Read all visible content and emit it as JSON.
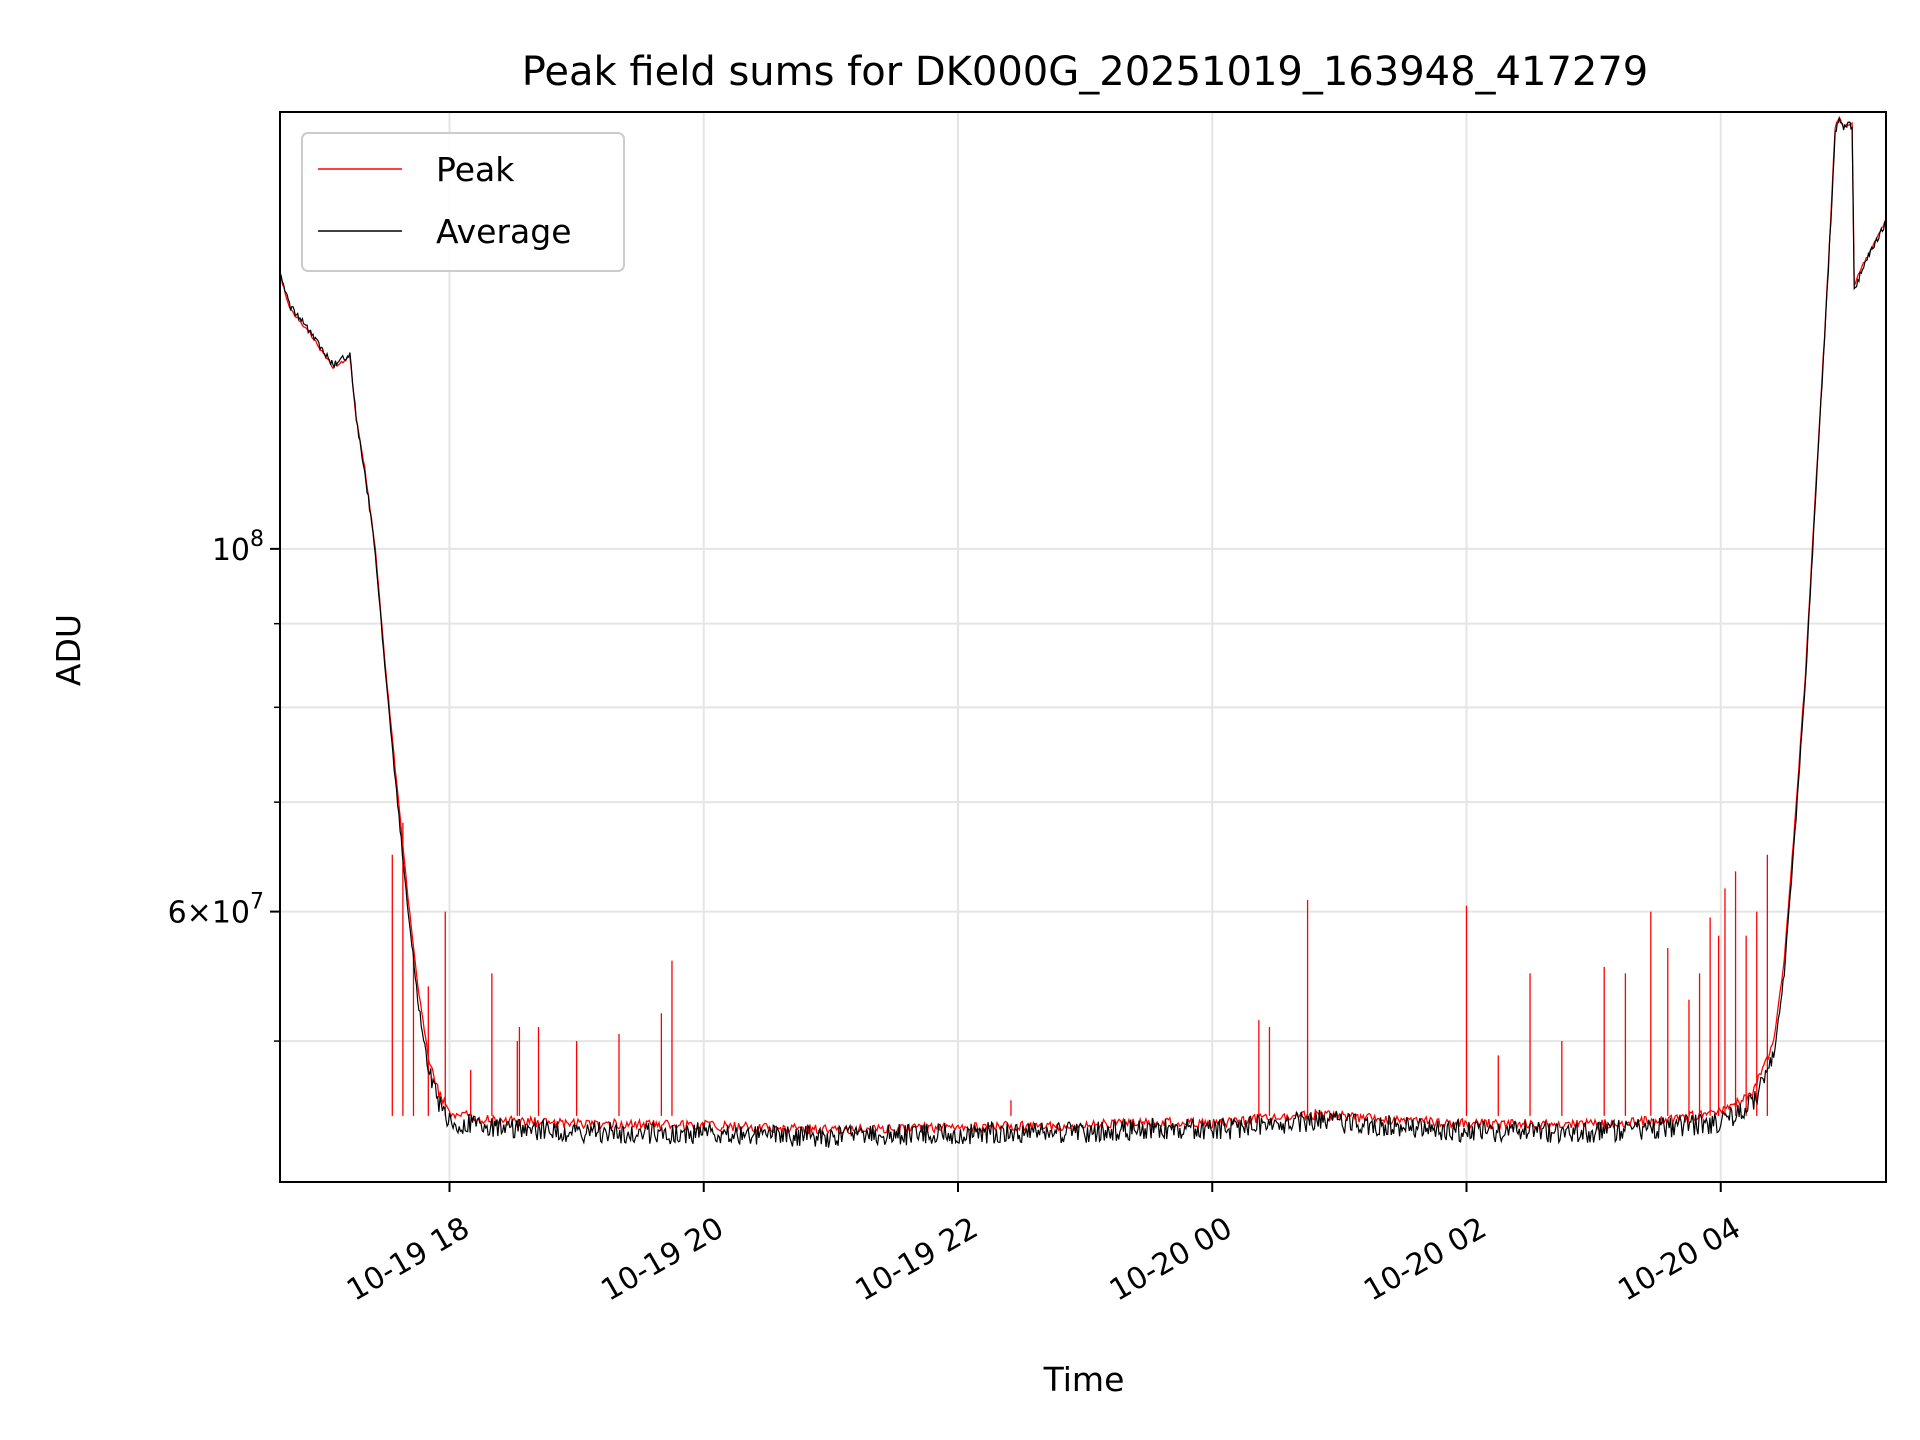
{
  "chart_data": {
    "type": "line",
    "title": "Peak field sums for DK000G_20251019_163948_417279",
    "xlabel": "Time",
    "ylabel": "ADU",
    "x_axis": {
      "type": "time",
      "range": [
        "2025-10-19 16:40",
        "2025-10-20 05:18"
      ],
      "ticks": [
        {
          "value": "2025-10-19 18:00",
          "label": "10-19 18"
        },
        {
          "value": "2025-10-19 20:00",
          "label": "10-19 20"
        },
        {
          "value": "2025-10-19 22:00",
          "label": "10-19 22"
        },
        {
          "value": "2025-10-20 00:00",
          "label": "10-20 00"
        },
        {
          "value": "2025-10-20 02:00",
          "label": "10-20 02"
        },
        {
          "value": "2025-10-20 04:00",
          "label": "10-20 04"
        }
      ]
    },
    "y_axis": {
      "scale": "log",
      "range": [
        41000000,
        185000000
      ],
      "major_ticks": [
        {
          "value": 100000000,
          "base": "10",
          "exp": "8"
        },
        {
          "value": 60000000,
          "mantissa": "6",
          "base": "10",
          "exp": "7"
        }
      ],
      "minor_ticks": [
        50000000,
        70000000,
        80000000,
        90000000
      ]
    },
    "grid": true,
    "legend_position": "top-left",
    "series": [
      {
        "name": "Peak",
        "color": "#ff0000",
        "points": [
          [
            "2025-10-19 16:40",
            147000000
          ],
          [
            "2025-10-19 16:45",
            140000000
          ],
          [
            "2025-10-19 16:55",
            135000000
          ],
          [
            "2025-10-19 17:05",
            129000000
          ],
          [
            "2025-10-19 17:13",
            131000000
          ],
          [
            "2025-10-19 17:16",
            120000000
          ],
          [
            "2025-10-19 17:20",
            112000000
          ],
          [
            "2025-10-19 17:25",
            100000000
          ],
          [
            "2025-10-19 17:30",
            84000000
          ],
          [
            "2025-10-19 17:35",
            72000000
          ],
          [
            "2025-10-19 17:40",
            62000000
          ],
          [
            "2025-10-19 17:45",
            54000000
          ],
          [
            "2025-10-19 17:50",
            49000000
          ],
          [
            "2025-10-19 17:55",
            46500000
          ],
          [
            "2025-10-19 18:00",
            45200000
          ],
          [
            "2025-10-19 18:20",
            44700000
          ],
          [
            "2025-10-19 19:00",
            44500000
          ],
          [
            "2025-10-19 20:00",
            44400000
          ],
          [
            "2025-10-19 21:00",
            44100000
          ],
          [
            "2025-10-19 22:00",
            44300000
          ],
          [
            "2025-10-19 23:00",
            44400000
          ],
          [
            "2025-10-19 23:30",
            44600000
          ],
          [
            "2025-10-20 00:00",
            44500000
          ],
          [
            "2025-10-20 00:30",
            44900000
          ],
          [
            "2025-10-20 00:50",
            45100000
          ],
          [
            "2025-10-20 01:20",
            44800000
          ],
          [
            "2025-10-20 02:00",
            44500000
          ],
          [
            "2025-10-20 03:00",
            44500000
          ],
          [
            "2025-10-20 03:30",
            44700000
          ],
          [
            "2025-10-20 04:00",
            45200000
          ],
          [
            "2025-10-20 04:15",
            46500000
          ],
          [
            "2025-10-20 04:25",
            50000000
          ],
          [
            "2025-10-20 04:30",
            56000000
          ],
          [
            "2025-10-20 04:35",
            68000000
          ],
          [
            "2025-10-20 04:40",
            84000000
          ],
          [
            "2025-10-20 04:45",
            110000000
          ],
          [
            "2025-10-20 04:49",
            135000000
          ],
          [
            "2025-10-20 04:52",
            160000000
          ],
          [
            "2025-10-20 04:54",
            181000000
          ],
          [
            "2025-10-20 04:56",
            184000000
          ],
          [
            "2025-10-20 04:58",
            181000000
          ],
          [
            "2025-10-20 05:00",
            182000000
          ],
          [
            "2025-10-20 05:02",
            182000000
          ],
          [
            "2025-10-20 05:03",
            145000000
          ],
          [
            "2025-10-20 05:08",
            150000000
          ],
          [
            "2025-10-20 05:14",
            155000000
          ],
          [
            "2025-10-20 05:18",
            159000000
          ]
        ],
        "spikes": [
          [
            "2025-10-19 17:33",
            65000000
          ],
          [
            "2025-10-19 17:38",
            68000000
          ],
          [
            "2025-10-19 17:43",
            57000000
          ],
          [
            "2025-10-19 17:50",
            54000000
          ],
          [
            "2025-10-19 17:58",
            60000000
          ],
          [
            "2025-10-19 18:10",
            48000000
          ],
          [
            "2025-10-19 18:20",
            55000000
          ],
          [
            "2025-10-19 18:32",
            50000000
          ],
          [
            "2025-10-19 18:33",
            51000000
          ],
          [
            "2025-10-19 18:42",
            51000000
          ],
          [
            "2025-10-19 19:00",
            50000000
          ],
          [
            "2025-10-19 19:20",
            50500000
          ],
          [
            "2025-10-19 19:40",
            52000000
          ],
          [
            "2025-10-19 19:45",
            56000000
          ],
          [
            "2025-10-19 22:25",
            46000000
          ],
          [
            "2025-10-20 00:22",
            51500000
          ],
          [
            "2025-10-20 00:27",
            51000000
          ],
          [
            "2025-10-20 00:45",
            61000000
          ],
          [
            "2025-10-20 02:00",
            60500000
          ],
          [
            "2025-10-20 02:15",
            49000000
          ],
          [
            "2025-10-20 02:30",
            55000000
          ],
          [
            "2025-10-20 02:45",
            50000000
          ],
          [
            "2025-10-20 03:05",
            55500000
          ],
          [
            "2025-10-20 03:15",
            55000000
          ],
          [
            "2025-10-20 03:27",
            60000000
          ],
          [
            "2025-10-20 03:35",
            57000000
          ],
          [
            "2025-10-20 03:45",
            53000000
          ],
          [
            "2025-10-20 03:50",
            55000000
          ],
          [
            "2025-10-20 03:55",
            59500000
          ],
          [
            "2025-10-20 03:59",
            58000000
          ],
          [
            "2025-10-20 04:02",
            62000000
          ],
          [
            "2025-10-20 04:07",
            63500000
          ],
          [
            "2025-10-20 04:12",
            58000000
          ],
          [
            "2025-10-20 04:17",
            60000000
          ],
          [
            "2025-10-20 04:22",
            65000000
          ]
        ]
      },
      {
        "name": "Average",
        "color": "#000000",
        "points": [
          [
            "2025-10-19 16:40",
            147500000
          ],
          [
            "2025-10-19 16:45",
            140500000
          ],
          [
            "2025-10-19 16:55",
            135500000
          ],
          [
            "2025-10-19 17:05",
            129500000
          ],
          [
            "2025-10-19 17:13",
            131500000
          ],
          [
            "2025-10-19 17:16",
            120000000
          ],
          [
            "2025-10-19 17:20",
            111500000
          ],
          [
            "2025-10-19 17:25",
            99500000
          ],
          [
            "2025-10-19 17:30",
            83000000
          ],
          [
            "2025-10-19 17:35",
            71000000
          ],
          [
            "2025-10-19 17:40",
            61000000
          ],
          [
            "2025-10-19 17:45",
            53000000
          ],
          [
            "2025-10-19 17:50",
            48000000
          ],
          [
            "2025-10-19 17:55",
            45800000
          ],
          [
            "2025-10-19 18:00",
            44700000
          ],
          [
            "2025-10-19 18:20",
            44200000
          ],
          [
            "2025-10-19 19:00",
            44000000
          ],
          [
            "2025-10-19 20:00",
            43900000
          ],
          [
            "2025-10-19 21:00",
            43700000
          ],
          [
            "2025-10-19 22:00",
            43900000
          ],
          [
            "2025-10-19 23:00",
            44000000
          ],
          [
            "2025-10-19 23:30",
            44200000
          ],
          [
            "2025-10-20 00:00",
            44100000
          ],
          [
            "2025-10-20 00:30",
            44500000
          ],
          [
            "2025-10-20 00:50",
            44700000
          ],
          [
            "2025-10-20 01:20",
            44400000
          ],
          [
            "2025-10-20 02:00",
            44000000
          ],
          [
            "2025-10-20 03:00",
            44000000
          ],
          [
            "2025-10-20 03:30",
            44200000
          ],
          [
            "2025-10-20 04:00",
            44600000
          ],
          [
            "2025-10-20 04:15",
            45800000
          ],
          [
            "2025-10-20 04:25",
            49000000
          ],
          [
            "2025-10-20 04:30",
            55000000
          ],
          [
            "2025-10-20 04:35",
            67000000
          ],
          [
            "2025-10-20 04:40",
            83000000
          ],
          [
            "2025-10-20 04:45",
            109000000
          ],
          [
            "2025-10-20 04:49",
            134000000
          ],
          [
            "2025-10-20 04:52",
            159000000
          ],
          [
            "2025-10-20 04:54",
            180000000
          ],
          [
            "2025-10-20 04:56",
            183500000
          ],
          [
            "2025-10-20 04:58",
            180500000
          ],
          [
            "2025-10-20 05:00",
            181500000
          ],
          [
            "2025-10-20 05:02",
            181500000
          ],
          [
            "2025-10-20 05:03",
            144000000
          ],
          [
            "2025-10-20 05:08",
            149500000
          ],
          [
            "2025-10-20 05:14",
            154500000
          ],
          [
            "2025-10-20 05:18",
            158500000
          ]
        ]
      }
    ]
  }
}
